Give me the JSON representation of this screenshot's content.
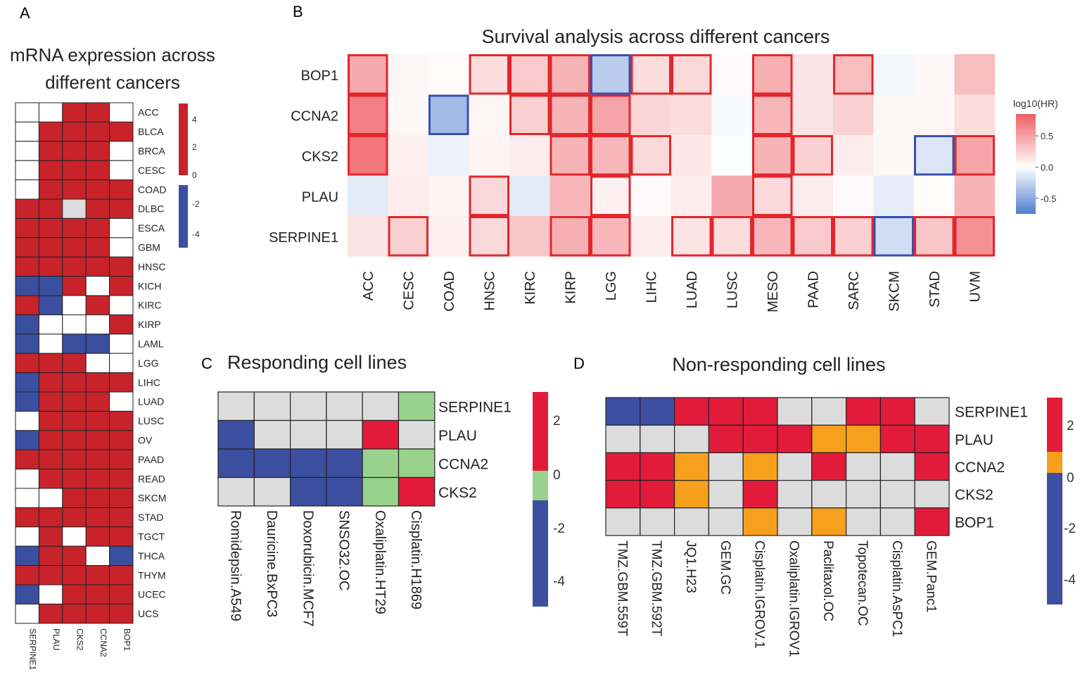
{
  "chart_data": [
    {
      "id": "A",
      "type": "heatmap",
      "panel_label": "A",
      "title_lines": [
        "mRNA expression across",
        "different cancers"
      ],
      "rows": [
        "ACC",
        "BLCA",
        "BRCA",
        "CESC",
        "COAD",
        "DLBC",
        "ESCA",
        "GBM",
        "HNSC",
        "KICH",
        "KIRC",
        "KIRP",
        "LAML",
        "LGG",
        "LIHC",
        "LUAD",
        "LUSC",
        "OV",
        "PAAD",
        "READ",
        "SKCM",
        "STAD",
        "TGCT",
        "THCA",
        "THYM",
        "UCEC",
        "UCS"
      ],
      "columns": [
        "SERPINE1",
        "PLAU",
        "CKS2",
        "CCNA2",
        "BOP1"
      ],
      "values": [
        [
          "w",
          "w",
          "r",
          "r",
          "w"
        ],
        [
          "w",
          "r",
          "r",
          "r",
          "r"
        ],
        [
          "w",
          "r",
          "r",
          "r",
          "w"
        ],
        [
          "w",
          "r",
          "r",
          "r",
          "w"
        ],
        [
          "w",
          "r",
          "r",
          "r",
          "r"
        ],
        [
          "r",
          "r",
          "g",
          "r",
          "r"
        ],
        [
          "r",
          "r",
          "r",
          "r",
          "w"
        ],
        [
          "r",
          "r",
          "r",
          "r",
          "w"
        ],
        [
          "r",
          "r",
          "r",
          "r",
          "r"
        ],
        [
          "b",
          "b",
          "r",
          "w",
          "r"
        ],
        [
          "r",
          "b",
          "w",
          "r",
          "w"
        ],
        [
          "b",
          "w",
          "w",
          "w",
          "r"
        ],
        [
          "b",
          "w",
          "b",
          "b",
          "w"
        ],
        [
          "r",
          "r",
          "r",
          "w",
          "w"
        ],
        [
          "b",
          "r",
          "r",
          "r",
          "r"
        ],
        [
          "b",
          "r",
          "r",
          "r",
          "w"
        ],
        [
          "w",
          "r",
          "r",
          "r",
          "r"
        ],
        [
          "b",
          "r",
          "r",
          "r",
          "r"
        ],
        [
          "r",
          "r",
          "r",
          "r",
          "r"
        ],
        [
          "w",
          "r",
          "r",
          "r",
          "r"
        ],
        [
          "w",
          "w",
          "r",
          "r",
          "r"
        ],
        [
          "r",
          "r",
          "r",
          "r",
          "r"
        ],
        [
          "w",
          "r",
          "w",
          "r",
          "r"
        ],
        [
          "b",
          "r",
          "r",
          "w",
          "b"
        ],
        [
          "r",
          "r",
          "r",
          "r",
          "r"
        ],
        [
          "b",
          "w",
          "r",
          "r",
          "r"
        ],
        [
          "w",
          "r",
          "r",
          "r",
          "r"
        ]
      ],
      "legend_ticks_pos": [
        "4",
        "2",
        "0"
      ],
      "legend_ticks_neg": [
        "-2",
        "-4"
      ],
      "colors": {
        "r": "#c8232b",
        "b": "#3b4fa0",
        "w": "#ffffff",
        "g": "#dcdcdc"
      }
    },
    {
      "id": "B",
      "type": "heatmap",
      "panel_label": "B",
      "title": "Survival analysis across different cancers",
      "rows": [
        "BOP1",
        "CCNA2",
        "CKS2",
        "PLAU",
        "SERPINE1"
      ],
      "columns": [
        "ACC",
        "CESC",
        "COAD",
        "HNSC",
        "KIRC",
        "KIRP",
        "LGG",
        "LIHC",
        "LUAD",
        "LUSC",
        "MESO",
        "PAAD",
        "SARC",
        "SKCM",
        "STAD",
        "UVM"
      ],
      "values": [
        [
          0.45,
          0.05,
          0.02,
          0.18,
          0.28,
          0.4,
          -0.3,
          0.18,
          0.2,
          0.03,
          0.42,
          0.15,
          0.35,
          -0.05,
          0.05,
          0.35
        ],
        [
          0.68,
          0.04,
          -0.4,
          0.05,
          0.25,
          0.4,
          0.48,
          0.22,
          0.18,
          -0.03,
          0.38,
          0.15,
          0.25,
          0.05,
          0.05,
          0.18
        ],
        [
          0.72,
          0.08,
          -0.08,
          0.06,
          0.1,
          0.4,
          0.38,
          0.2,
          0.12,
          -0.02,
          0.4,
          0.25,
          0.1,
          0.05,
          -0.15,
          0.48
        ],
        [
          -0.12,
          0.1,
          0.06,
          0.2,
          -0.12,
          0.38,
          0.08,
          0.03,
          0.1,
          0.45,
          0.2,
          0.1,
          0.03,
          -0.1,
          0.02,
          0.4
        ],
        [
          0.15,
          0.25,
          0.08,
          0.2,
          0.3,
          0.42,
          0.38,
          0.1,
          0.15,
          0.18,
          0.38,
          0.28,
          0.25,
          -0.2,
          0.3,
          0.58
        ]
      ],
      "significant_up": [
        [
          0,
          0
        ],
        [
          0,
          3
        ],
        [
          0,
          4
        ],
        [
          0,
          5
        ],
        [
          0,
          7
        ],
        [
          0,
          8
        ],
        [
          0,
          10
        ],
        [
          0,
          12
        ],
        [
          1,
          0
        ],
        [
          1,
          4
        ],
        [
          1,
          5
        ],
        [
          1,
          6
        ],
        [
          1,
          10
        ],
        [
          2,
          0
        ],
        [
          2,
          5
        ],
        [
          2,
          6
        ],
        [
          2,
          7
        ],
        [
          2,
          10
        ],
        [
          2,
          11
        ],
        [
          2,
          15
        ],
        [
          3,
          3
        ],
        [
          3,
          6
        ],
        [
          3,
          10
        ],
        [
          4,
          1
        ],
        [
          4,
          3
        ],
        [
          4,
          5
        ],
        [
          4,
          6
        ],
        [
          4,
          8
        ],
        [
          4,
          9
        ],
        [
          4,
          10
        ],
        [
          4,
          11
        ],
        [
          4,
          12
        ],
        [
          4,
          14
        ],
        [
          4,
          15
        ]
      ],
      "significant_down": [
        [
          0,
          6
        ],
        [
          1,
          2
        ],
        [
          2,
          14
        ],
        [
          4,
          13
        ]
      ],
      "legend_title": "log10(HR)",
      "legend_ticks": [
        "0.5",
        "0.0",
        "-0.5"
      ],
      "legend_range": [
        -0.75,
        0.85
      ]
    },
    {
      "id": "C",
      "type": "heatmap",
      "panel_label": "C",
      "title": "Responding cell lines",
      "rows": [
        "SERPINE1",
        "PLAU",
        "CCNA2",
        "CKS2"
      ],
      "columns": [
        "Romidepsin.A549",
        "Dauricine.BxPC3",
        "Doxorubicin.MCF7",
        "SNSO32.OC",
        "Oxaliplatin.HT29",
        "Cisplatin.H1869"
      ],
      "values": [
        [
          "g",
          "g",
          "g",
          "g",
          "g",
          "l"
        ],
        [
          "b",
          "g",
          "g",
          "g",
          "r",
          "g"
        ],
        [
          "b",
          "b",
          "b",
          "b",
          "l",
          "l"
        ],
        [
          "g",
          "g",
          "b",
          "b",
          "l",
          "r"
        ]
      ],
      "legend_ticks": [
        "2",
        "0",
        "-2",
        "-4"
      ],
      "colors": {
        "r": "#e31b3b",
        "b": "#3c4fa1",
        "g": "#dcdcdc",
        "l": "#99d28c"
      }
    },
    {
      "id": "D",
      "type": "heatmap",
      "panel_label": "D",
      "title": "Non-responding cell lines",
      "rows": [
        "SERPINE1",
        "PLAU",
        "CCNA2",
        "CKS2",
        "BOP1"
      ],
      "columns": [
        "TMZ.GBM.559T",
        "TMZ.GBM.592T",
        "JQ1.H23",
        "GEM.GC",
        "Cisplatin.IGROV.1",
        "Oxaliplatin.IGROV1",
        "Paclitaxol.OC",
        "Topotecan.OC",
        "Cisplatin.AsPC1",
        "GEM.Panc1"
      ],
      "values": [
        [
          "b",
          "b",
          "r",
          "r",
          "r",
          "g",
          "g",
          "r",
          "r",
          "g"
        ],
        [
          "g",
          "g",
          "g",
          "r",
          "r",
          "r",
          "o",
          "o",
          "r",
          "r"
        ],
        [
          "r",
          "r",
          "o",
          "g",
          "o",
          "g",
          "r",
          "g",
          "g",
          "r"
        ],
        [
          "r",
          "r",
          "o",
          "g",
          "r",
          "g",
          "g",
          "g",
          "g",
          "g"
        ],
        [
          "g",
          "g",
          "g",
          "g",
          "o",
          "g",
          "o",
          "g",
          "g",
          "r"
        ]
      ],
      "legend_ticks": [
        "2",
        "0",
        "-2",
        "-4"
      ],
      "colors": {
        "r": "#e31b3b",
        "b": "#3c4fa1",
        "g": "#dcdcdc",
        "o": "#f7a01e"
      }
    }
  ]
}
